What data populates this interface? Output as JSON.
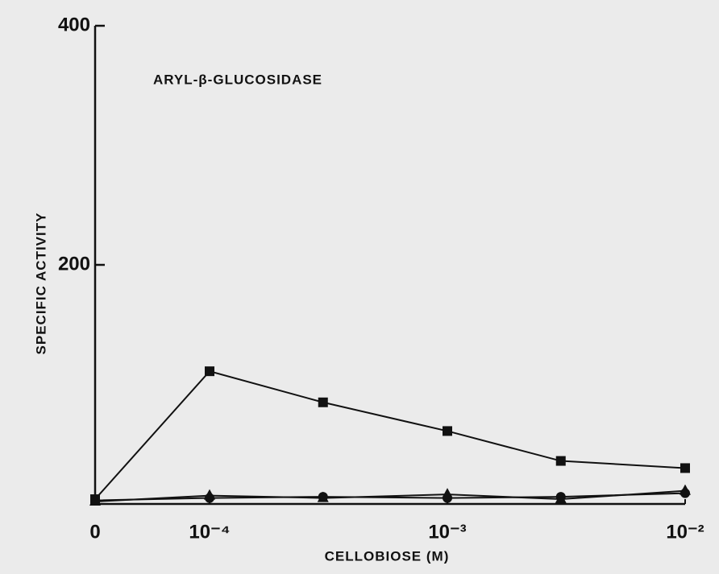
{
  "chart_data": {
    "type": "line",
    "annotation": "ARYL-β-GLUCOSIDASE",
    "xlabel": "CELLOBIOSE (M)",
    "ylabel": "SPECIFIC ACTIVITY",
    "xscale": "log",
    "x": [
      0,
      0.0001,
      0.0003,
      0.001,
      0.003,
      0.01
    ],
    "xlim": [
      0,
      0.01
    ],
    "xticks": [
      {
        "value": 0,
        "label": "0"
      },
      {
        "value": 0.0001,
        "label": "10⁻⁴"
      },
      {
        "value": 0.001,
        "label": "10⁻³"
      },
      {
        "value": 0.01,
        "label": "10⁻²"
      }
    ],
    "ylim": [
      0,
      400
    ],
    "yticks": [
      200,
      400
    ],
    "series": [
      {
        "color": "#111111",
        "marker": "square",
        "values": [
          4,
          111,
          85,
          61,
          36,
          30
        ]
      },
      {
        "color": "#111111",
        "marker": "circle",
        "values": [
          3,
          5,
          6,
          5,
          6,
          9
        ]
      },
      {
        "color": "#111111",
        "marker": "triangle",
        "values": [
          2,
          7,
          5,
          8,
          4,
          11
        ]
      }
    ]
  }
}
